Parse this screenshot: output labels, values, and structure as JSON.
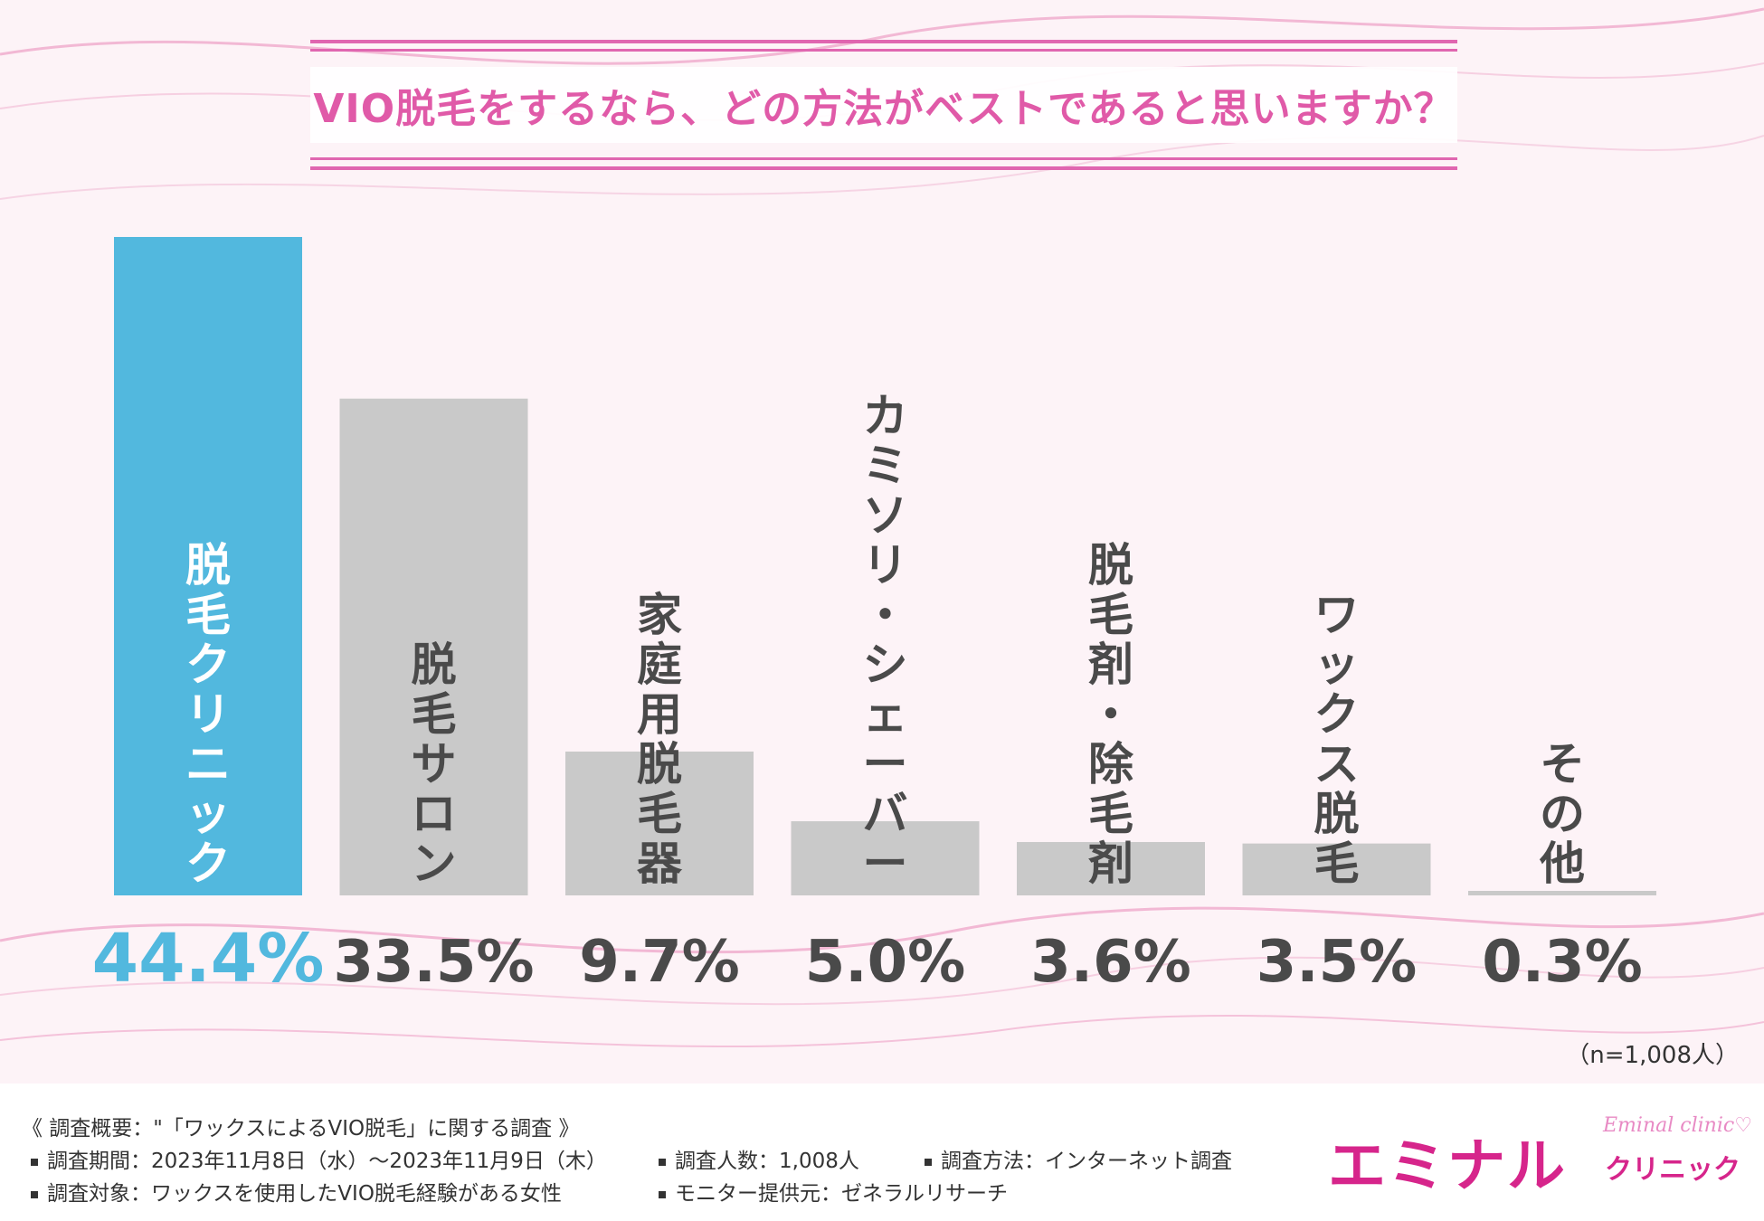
{
  "title": "VIO脱毛をするなら、どの方法がベストであると思いますか？",
  "chart_data": {
    "type": "bar",
    "categories": [
      "脱毛クリニック",
      "脱毛サロン",
      "家庭用脱毛器",
      "カミソリ・シェーバー",
      "脱毛剤・除毛剤",
      "ワックス脱毛",
      "その他"
    ],
    "values": [
      44.4,
      33.5,
      9.7,
      5.0,
      3.6,
      3.5,
      0.3
    ],
    "value_labels": [
      "44.4%",
      "33.5%",
      "9.7%",
      "5.0%",
      "3.6%",
      "3.5%",
      "0.3%"
    ],
    "highlight_index": 0,
    "ylim": [
      0,
      44.4
    ],
    "colors": {
      "highlight": "#52b8de",
      "default": "#c9c9c9",
      "highlight_text": "#ffffff",
      "default_text": "#4a4a4a",
      "value_highlight": "#52b8de",
      "value_default": "#4a4a4a"
    }
  },
  "sample_note": "（n=1,008人）",
  "footer": {
    "heading": "《 調査概要：\"「ワックスによるVIO脱毛」に関する調査 》",
    "period": "調査期間：2023年11月8日（水）～2023年11月9日（木）",
    "count": "調査人数：1,008人",
    "method": "調査方法：インターネット調査",
    "target": "調査対象：ワックスを使用したVIO脱毛経験がある女性",
    "provider": "モニター提供元：ゼネラルリサーチ"
  },
  "logo": {
    "main": "エミナル",
    "sub": "クリニック",
    "en": "Eminal clinic♡",
    "color": "#d6258b"
  }
}
